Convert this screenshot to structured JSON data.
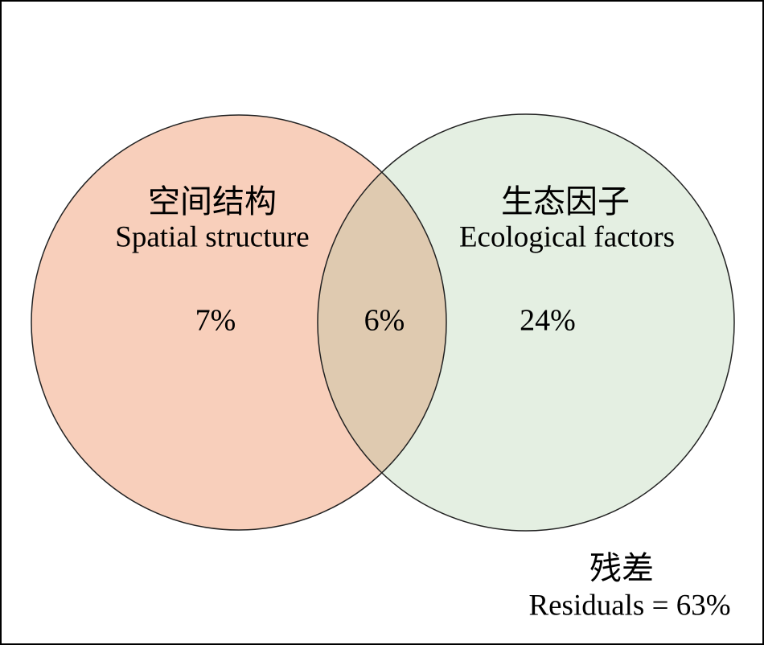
{
  "sets": [
    {
      "label_cn": "空间结构",
      "label_en": "Spatial structure",
      "unique": "7%"
    },
    {
      "label_cn": "生态因子",
      "label_en": "Ecological factors",
      "unique": "24%"
    }
  ],
  "overlap": "6%",
  "residuals": {
    "label_cn": "残差",
    "label_en": "Residuals = 63%"
  }
}
